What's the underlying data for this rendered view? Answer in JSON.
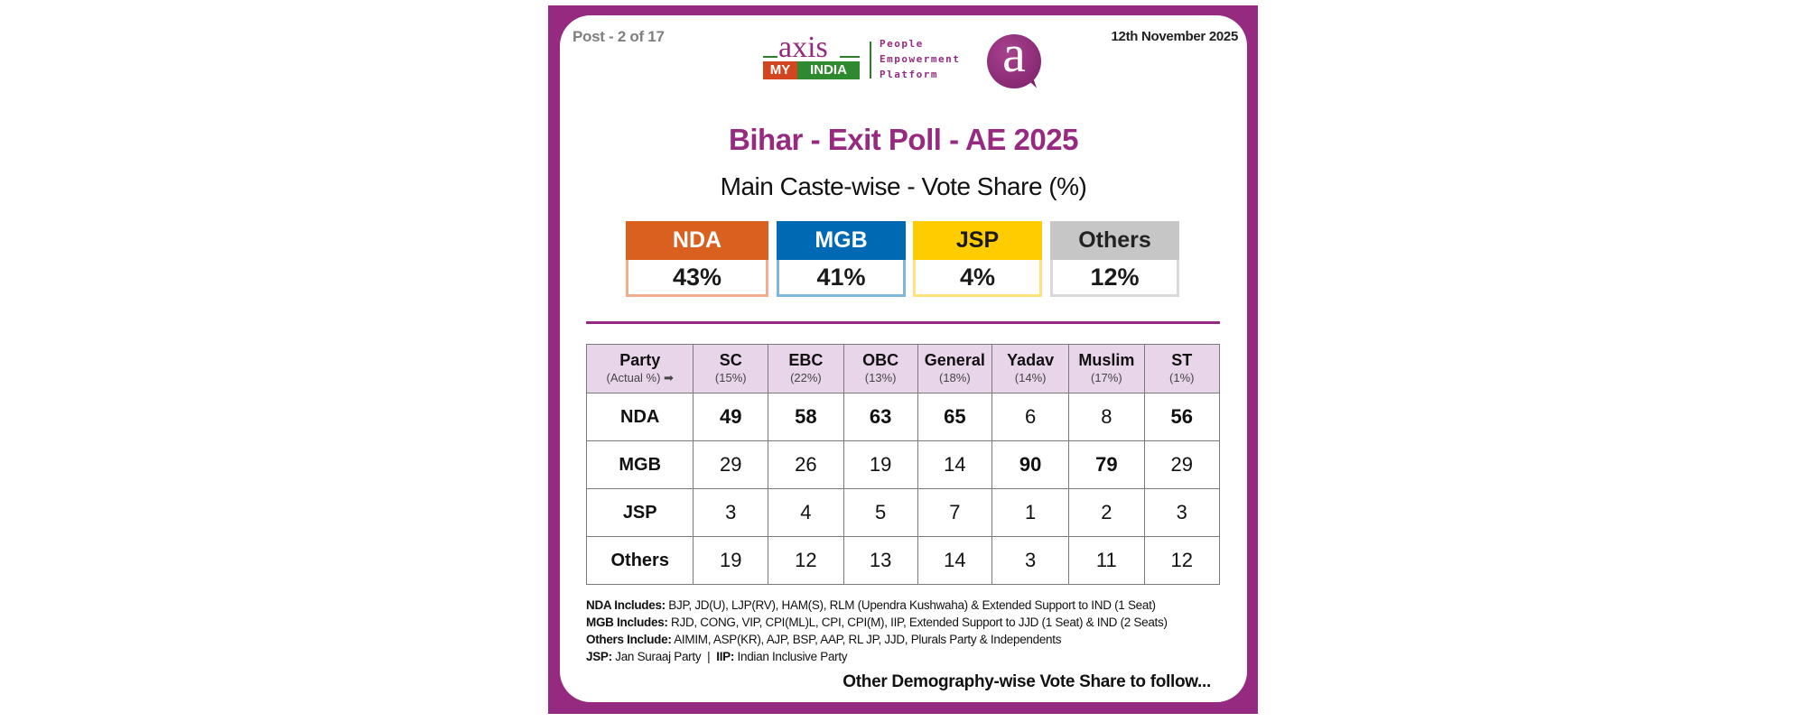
{
  "header": {
    "post_label": "Post - 2 of 17",
    "date": "12th November 2025",
    "logo": {
      "axis": "axis",
      "my": "MY",
      "india": "INDIA",
      "tagline": [
        "People",
        "Empowerment",
        "Platform"
      ],
      "bubble_letter": "a"
    }
  },
  "title": "Bihar - Exit Poll - AE 2025",
  "subtitle": "Main Caste-wise - Vote Share (%)",
  "summary": [
    {
      "party": "NDA",
      "share": "43%",
      "color": "#d9601f",
      "border": "#f0ae8a",
      "text": "#ffffff"
    },
    {
      "party": "MGB",
      "share": "41%",
      "color": "#0069b4",
      "border": "#7fb6de",
      "text": "#ffffff"
    },
    {
      "party": "JSP",
      "share": "4%",
      "color": "#ffcc00",
      "border": "#ffe27a",
      "text": "#1a1a1a"
    },
    {
      "party": "Others",
      "share": "12%",
      "color": "#c6c6c6",
      "border": "#d9d9d9",
      "text": "#222222"
    }
  ],
  "table": {
    "corner": {
      "label": "Party",
      "sub": "(Actual %) ➡"
    },
    "columns": [
      {
        "name": "SC",
        "pct": "(15%)"
      },
      {
        "name": "EBC",
        "pct": "(22%)"
      },
      {
        "name": "OBC",
        "pct": "(13%)"
      },
      {
        "name": "General",
        "pct": "(18%)"
      },
      {
        "name": "Yadav",
        "pct": "(14%)"
      },
      {
        "name": "Muslim",
        "pct": "(17%)"
      },
      {
        "name": "ST",
        "pct": "(1%)"
      }
    ],
    "rows": [
      {
        "party": "NDA",
        "cells": [
          {
            "v": "49",
            "bold": true
          },
          {
            "v": "58",
            "bold": true
          },
          {
            "v": "63",
            "bold": true
          },
          {
            "v": "65",
            "bold": true
          },
          {
            "v": "6",
            "bold": false
          },
          {
            "v": "8",
            "bold": false
          },
          {
            "v": "56",
            "bold": true
          }
        ]
      },
      {
        "party": "MGB",
        "cells": [
          {
            "v": "29",
            "bold": false
          },
          {
            "v": "26",
            "bold": false
          },
          {
            "v": "19",
            "bold": false
          },
          {
            "v": "14",
            "bold": false
          },
          {
            "v": "90",
            "bold": true
          },
          {
            "v": "79",
            "bold": true
          },
          {
            "v": "29",
            "bold": false
          }
        ]
      },
      {
        "party": "JSP",
        "cells": [
          {
            "v": "3",
            "bold": false
          },
          {
            "v": "4",
            "bold": false
          },
          {
            "v": "5",
            "bold": false
          },
          {
            "v": "7",
            "bold": false
          },
          {
            "v": "1",
            "bold": false
          },
          {
            "v": "2",
            "bold": false
          },
          {
            "v": "3",
            "bold": false
          }
        ]
      },
      {
        "party": "Others",
        "cells": [
          {
            "v": "19",
            "bold": false
          },
          {
            "v": "12",
            "bold": false
          },
          {
            "v": "13",
            "bold": false
          },
          {
            "v": "14",
            "bold": false
          },
          {
            "v": "3",
            "bold": false
          },
          {
            "v": "11",
            "bold": false
          },
          {
            "v": "12",
            "bold": false
          }
        ]
      }
    ]
  },
  "notes": {
    "nda_label": "NDA Includes:",
    "nda_text": " BJP, JD(U), LJP(RV), HAM(S), RLM (Upendra Kushwaha) & Extended Support to IND (1 Seat)",
    "mgb_label": "MGB Includes:",
    "mgb_text": " RJD, CONG, VIP, CPI(ML)L, CPI, CPI(M), IIP, Extended Support to JJD (1 Seat) & IND (2 Seats)",
    "others_label": "Others Include:",
    "others_text": " AIMIM, ASP(KR), AJP, BSP, AAP, RL JP, JJD, Plurals Party & Independents",
    "jsp_label": "JSP:",
    "jsp_text": " Jan Suraaj Party  |  ",
    "iip_label": "IIP:",
    "iip_text": " Indian Inclusive Party"
  },
  "follow_text": "Other Demography-wise Vote Share to follow..."
}
